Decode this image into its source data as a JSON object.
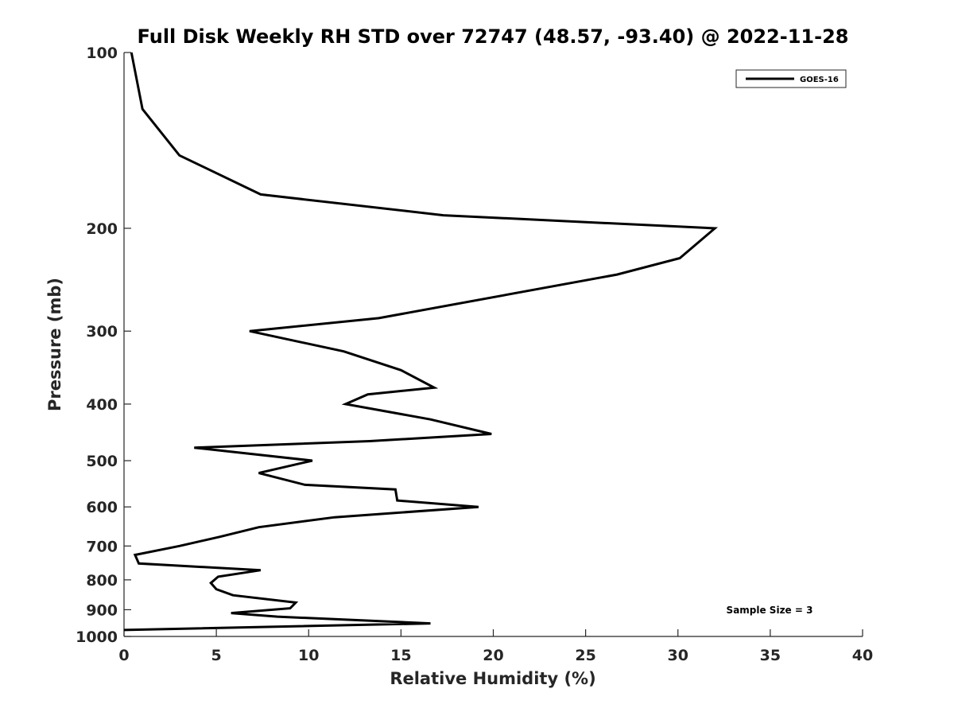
{
  "chart_data": {
    "type": "line",
    "title": "Full Disk Weekly RH STD over 72747 (48.57, -93.40) @ 2022-11-28",
    "xlabel": "Relative Humidity (%)",
    "ylabel": "Pressure (mb)",
    "xlim": [
      0,
      40
    ],
    "ylim": [
      100,
      1000
    ],
    "y_scale": "log",
    "y_reversed": true,
    "grid": false,
    "legend_position": "top-right",
    "x_ticks": [
      0,
      5,
      10,
      15,
      20,
      25,
      30,
      35,
      40
    ],
    "y_ticks": [
      100,
      200,
      300,
      400,
      500,
      600,
      700,
      800,
      900,
      1000
    ],
    "series": [
      {
        "name": "GOES-16",
        "color": "#000000",
        "points": [
          [
            0.4,
            100
          ],
          [
            1.0,
            125
          ],
          [
            3.0,
            150
          ],
          [
            7.4,
            175
          ],
          [
            17.3,
            190
          ],
          [
            32.0,
            200
          ],
          [
            30.1,
            225
          ],
          [
            26.7,
            240
          ],
          [
            13.8,
            285
          ],
          [
            6.8,
            300
          ],
          [
            11.9,
            325
          ],
          [
            15.0,
            350
          ],
          [
            16.8,
            375
          ],
          [
            13.2,
            385
          ],
          [
            12.0,
            400
          ],
          [
            16.6,
            425
          ],
          [
            19.9,
            450
          ],
          [
            13.3,
            463
          ],
          [
            3.8,
            475
          ],
          [
            10.2,
            500
          ],
          [
            7.3,
            525
          ],
          [
            9.8,
            550
          ],
          [
            14.7,
            560
          ],
          [
            14.8,
            585
          ],
          [
            19.2,
            600
          ],
          [
            11.4,
            625
          ],
          [
            7.3,
            650
          ],
          [
            5.2,
            675
          ],
          [
            3.0,
            700
          ],
          [
            0.6,
            725
          ],
          [
            0.8,
            750
          ],
          [
            7.4,
            770
          ],
          [
            5.1,
            790
          ],
          [
            4.7,
            810
          ],
          [
            5.0,
            830
          ],
          [
            5.9,
            850
          ],
          [
            9.3,
            875
          ],
          [
            9.0,
            895
          ],
          [
            5.8,
            912
          ],
          [
            8.3,
            925
          ],
          [
            16.6,
            950
          ],
          [
            0.0,
            975
          ]
        ]
      }
    ],
    "legend": [
      "GOES-16"
    ],
    "annotation": "Sample Size = 3"
  }
}
